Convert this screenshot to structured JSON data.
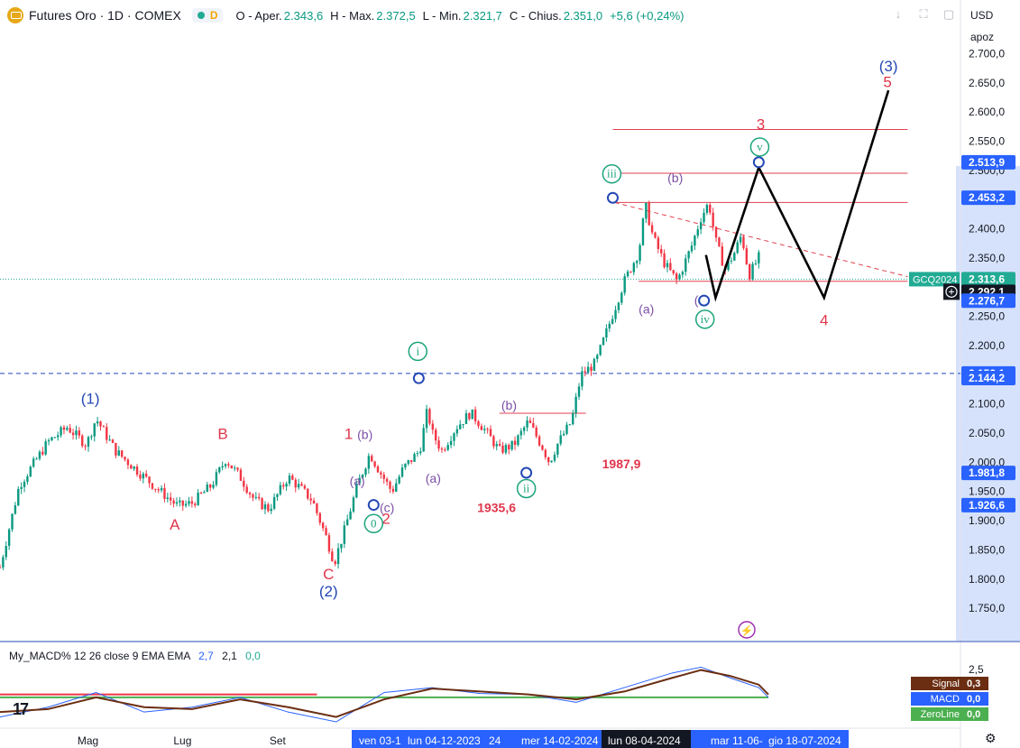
{
  "header": {
    "title": "Futures Oro · 1D · COMEX",
    "interval_badge": "D",
    "open_label": "O - Aper.",
    "open_value": "2.343,6",
    "high_label": "H - Max.",
    "high_value": "2.372,5",
    "low_label": "L - Min.",
    "low_value": "2.321,7",
    "close_label": "C - Chius.",
    "close_value": "2.351,0",
    "change": "+5,6 (+0,24%)"
  },
  "toolbar": {
    "download_icon": "↓",
    "fullscreen_icon": "⛶",
    "snapshot_icon": "▢"
  },
  "currency": "USD",
  "scale_mode": "apoz",
  "colors": {
    "up": "#089981",
    "down": "#f23645",
    "wave_blue": "#2448b5",
    "wave_red": "#e0364b",
    "wave_purple": "#7b4fa6",
    "wave_teal": "#1aa37a",
    "hline": "#e04050",
    "dashed_blue": "#2448b5",
    "macd": "#2962ff",
    "signal": "#6b2e12",
    "zero": "#4caf50",
    "axis_label_blue": "#2962ff"
  },
  "chart_data": {
    "type": "candlestick",
    "instrument": "Futures Oro · 1D · COMEX",
    "y_axis": {
      "range": [
        1710,
        2730
      ],
      "ticks": [
        "2.700,0",
        "2.650,0",
        "2.600,0",
        "2.550,0",
        "2.500,0",
        "2.450,0",
        "2.400,0",
        "2.350,0",
        "2.300,0",
        "2.250,0",
        "2.200,0",
        "2.150,0",
        "2.100,0",
        "2.050,0",
        "2.000,0",
        "1.950,0",
        "1.900,0",
        "1.850,0",
        "1.800,0",
        "1.750,0"
      ],
      "tick_values": [
        2700,
        2650,
        2600,
        2550,
        2500,
        2450,
        2400,
        2350,
        2300,
        2250,
        2200,
        2150,
        2100,
        2050,
        2000,
        1950,
        1900,
        1850,
        1800,
        1750
      ]
    },
    "x_axis": {
      "ticks": [
        {
          "label": "Mag",
          "frac": 0.09
        },
        {
          "label": "Lug",
          "frac": 0.19
        },
        {
          "label": "Set",
          "frac": 0.29
        },
        {
          "label": "Set",
          "frac": 0.87
        }
      ],
      "highlighted": [
        {
          "label": "ven 03-1"
        },
        {
          "label": "lun 04-12-2023"
        },
        {
          "label": "24"
        },
        {
          "label": "mer 14-02-2024"
        },
        {
          "label": "lun 08-04-2024",
          "dark": true
        },
        {
          "label": "mar 11-06-"
        },
        {
          "label": "gio 18-07-2024"
        }
      ]
    },
    "price_path": [
      [
        0,
        1820
      ],
      [
        0.02,
        1960
      ],
      [
        0.05,
        2035
      ],
      [
        0.07,
        2060
      ],
      [
        0.09,
        2030
      ],
      [
        0.1,
        2075
      ],
      [
        0.12,
        2020
      ],
      [
        0.14,
        1990
      ],
      [
        0.16,
        1960
      ],
      [
        0.185,
        1925
      ],
      [
        0.2,
        1930
      ],
      [
        0.22,
        1960
      ],
      [
        0.235,
        2005
      ],
      [
        0.25,
        1975
      ],
      [
        0.265,
        1935
      ],
      [
        0.28,
        1920
      ],
      [
        0.3,
        1975
      ],
      [
        0.31,
        1960
      ],
      [
        0.325,
        1935
      ],
      [
        0.34,
        1870
      ],
      [
        0.348,
        1828
      ],
      [
        0.358,
        1880
      ],
      [
        0.372,
        1960
      ],
      [
        0.385,
        2015
      ],
      [
        0.395,
        1985
      ],
      [
        0.408,
        1950
      ],
      [
        0.42,
        1990
      ],
      [
        0.437,
        2020
      ],
      [
        0.445,
        2090
      ],
      [
        0.45,
        2050
      ],
      [
        0.46,
        2020
      ],
      [
        0.475,
        2060
      ],
      [
        0.49,
        2085
      ],
      [
        0.505,
        2055
      ],
      [
        0.52,
        2020
      ],
      [
        0.535,
        2030
      ],
      [
        0.55,
        2070
      ],
      [
        0.565,
        2025
      ],
      [
        0.572,
        2000
      ],
      [
        0.58,
        2030
      ],
      [
        0.595,
        2070
      ],
      [
        0.605,
        2150
      ],
      [
        0.62,
        2170
      ],
      [
        0.635,
        2240
      ],
      [
        0.65,
        2310
      ],
      [
        0.665,
        2360
      ],
      [
        0.672,
        2440
      ],
      [
        0.68,
        2385
      ],
      [
        0.692,
        2340
      ],
      [
        0.705,
        2310
      ],
      [
        0.72,
        2370
      ],
      [
        0.73,
        2420
      ],
      [
        0.738,
        2445
      ],
      [
        0.745,
        2380
      ],
      [
        0.755,
        2330
      ],
      [
        0.765,
        2360
      ],
      [
        0.772,
        2390
      ],
      [
        0.78,
        2320
      ],
      [
        0.79,
        2351
      ]
    ],
    "macd": {
      "macd_line": [
        [
          0,
          -2
        ],
        [
          0.05,
          -1
        ],
        [
          0.1,
          0.5
        ],
        [
          0.15,
          -1.5
        ],
        [
          0.2,
          -1
        ],
        [
          0.25,
          0
        ],
        [
          0.3,
          -1.5
        ],
        [
          0.35,
          -2.5
        ],
        [
          0.4,
          0.5
        ],
        [
          0.45,
          1
        ],
        [
          0.5,
          0.4
        ],
        [
          0.55,
          0.3
        ],
        [
          0.6,
          -0.5
        ],
        [
          0.65,
          1
        ],
        [
          0.7,
          2.5
        ],
        [
          0.73,
          3.1
        ],
        [
          0.76,
          2
        ],
        [
          0.79,
          1
        ],
        [
          0.8,
          0
        ]
      ],
      "signal_line": [
        [
          0,
          -1.5
        ],
        [
          0.05,
          -1.2
        ],
        [
          0.1,
          0
        ],
        [
          0.15,
          -1
        ],
        [
          0.2,
          -1.2
        ],
        [
          0.25,
          -0.2
        ],
        [
          0.3,
          -1
        ],
        [
          0.35,
          -2
        ],
        [
          0.4,
          -0.2
        ],
        [
          0.45,
          0.9
        ],
        [
          0.5,
          0.6
        ],
        [
          0.55,
          0.3
        ],
        [
          0.6,
          -0.2
        ],
        [
          0.65,
          0.6
        ],
        [
          0.7,
          2
        ],
        [
          0.73,
          2.8
        ],
        [
          0.76,
          2.2
        ],
        [
          0.79,
          1.3
        ],
        [
          0.8,
          0.3
        ]
      ],
      "ylim": [
        -2.5,
        3.5
      ],
      "ylabel_top": "2,5",
      "legend": [
        {
          "name": "Signal",
          "value": "0,3",
          "color": "#6b2e12"
        },
        {
          "name": "MACD",
          "value": "0,0",
          "color": "#2962ff"
        },
        {
          "name": "ZeroLine",
          "value": "0,0",
          "color": "#4caf50"
        }
      ]
    },
    "indicator_header": {
      "name": "My_MACD%",
      "params": "12 26 close 9 EMA EMA",
      "v1": "2,7",
      "v2": "2,1",
      "v3": "0,0"
    },
    "price_labels": [
      {
        "text": "2.513,9",
        "value": 2513.9,
        "bg": "#2962ff"
      },
      {
        "text": "2.453,2",
        "value": 2453.2,
        "bg": "#2962ff"
      },
      {
        "text": "2.313,6",
        "value": 2313.6,
        "bg": "#22ab94",
        "tag": "GCQ2024"
      },
      {
        "text": "2.292,1",
        "value": 2292.1,
        "bg": "#131722",
        "crosshair": true
      },
      {
        "text": "2.276,7",
        "value": 2276.7,
        "bg": "#2962ff"
      },
      {
        "text": "2.152,1",
        "value": 2152.1,
        "bg": "#2962ff"
      },
      {
        "text": "2.144,2",
        "value": 2144.2,
        "bg": "#2962ff"
      },
      {
        "text": "1.981,8",
        "value": 1981.8,
        "bg": "#2962ff"
      },
      {
        "text": "1.926,6",
        "value": 1926.6,
        "bg": "#2962ff"
      }
    ],
    "hlines": [
      {
        "value": 2570,
        "x0": 0.638,
        "x1": 0.945
      },
      {
        "value": 2495,
        "x0": 0.635,
        "x1": 0.945
      },
      {
        "value": 2445,
        "x0": 0.635,
        "x1": 0.945
      },
      {
        "value": 2310,
        "x0": 0.665,
        "x1": 0.945
      },
      {
        "value": 2084,
        "x0": 0.52,
        "x1": 0.61
      }
    ],
    "dashed_trend": {
      "from": [
        0.64,
        2445
      ],
      "to": [
        0.945,
        2318
      ]
    },
    "dotted_price_line": 2313.6,
    "blue_dashed_level": 2152.1,
    "projection": [
      [
        0.735,
        2355
      ],
      [
        0.745,
        2282
      ],
      [
        0.79,
        2505
      ],
      [
        0.858,
        2282
      ],
      [
        0.925,
        2637
      ]
    ],
    "wave_labels": [
      {
        "text": "(1)",
        "x": 0.094,
        "y": 2100,
        "color": "wave_blue"
      },
      {
        "text": "(2)",
        "x": 0.342,
        "y": 1770,
        "color": "wave_blue"
      },
      {
        "text": "(3)",
        "x": 0.925,
        "y": 2670,
        "color": "wave_blue"
      },
      {
        "text": "A",
        "x": 0.182,
        "y": 1885,
        "color": "wave_red"
      },
      {
        "text": "B",
        "x": 0.232,
        "y": 2040,
        "color": "wave_red"
      },
      {
        "text": "C",
        "x": 0.342,
        "y": 1800,
        "color": "wave_red"
      },
      {
        "text": "1",
        "x": 0.363,
        "y": 2040,
        "color": "wave_red"
      },
      {
        "text": "2",
        "x": 0.402,
        "y": 1895,
        "color": "wave_red"
      },
      {
        "text": "3",
        "x": 0.792,
        "y": 2570,
        "color": "wave_red"
      },
      {
        "text": "4",
        "x": 0.858,
        "y": 2235,
        "color": "wave_red"
      },
      {
        "text": "5",
        "x": 0.924,
        "y": 2643,
        "color": "wave_red"
      },
      {
        "text": "(b)",
        "x": 0.38,
        "y": 2040,
        "color": "wave_purple"
      },
      {
        "text": "(a)",
        "x": 0.372,
        "y": 1960,
        "color": "wave_purple"
      },
      {
        "text": "(c)",
        "x": 0.403,
        "y": 1915,
        "color": "wave_purple"
      },
      {
        "text": "(a)",
        "x": 0.451,
        "y": 1965,
        "color": "wave_purple"
      },
      {
        "text": "(b)",
        "x": 0.53,
        "y": 2090,
        "color": "wave_purple"
      },
      {
        "text": "(b)",
        "x": 0.703,
        "y": 2480,
        "color": "wave_purple"
      },
      {
        "text": "(a)",
        "x": 0.673,
        "y": 2255,
        "color": "wave_purple"
      },
      {
        "text": "(",
        "x": 0.725,
        "y": 2270,
        "color": "wave_purple"
      },
      {
        "text": "1935,6",
        "x": 0.517,
        "y": 1915,
        "color": "wave_red"
      },
      {
        "text": "1987,9",
        "x": 0.647,
        "y": 1990,
        "color": "wave_red"
      }
    ],
    "circled_labels": [
      {
        "text": "i",
        "x": 0.435,
        "y": 2190,
        "color": "wave_teal"
      },
      {
        "text": "ii",
        "x": 0.548,
        "y": 1955,
        "color": "wave_teal"
      },
      {
        "text": "iii",
        "x": 0.637,
        "y": 2494,
        "color": "wave_teal"
      },
      {
        "text": "iv",
        "x": 0.734,
        "y": 2245,
        "color": "wave_teal"
      },
      {
        "text": "v",
        "x": 0.791,
        "y": 2540,
        "color": "wave_teal"
      },
      {
        "text": "0",
        "x": 0.389,
        "y": 1895,
        "color": "wave_teal"
      }
    ],
    "anchors": [
      {
        "x": 0.436,
        "y": 2144
      },
      {
        "x": 0.548,
        "y": 1982
      },
      {
        "x": 0.638,
        "y": 2453
      },
      {
        "x": 0.733,
        "y": 2277
      },
      {
        "x": 0.79,
        "y": 2514
      },
      {
        "x": 0.389,
        "y": 1927
      }
    ]
  }
}
